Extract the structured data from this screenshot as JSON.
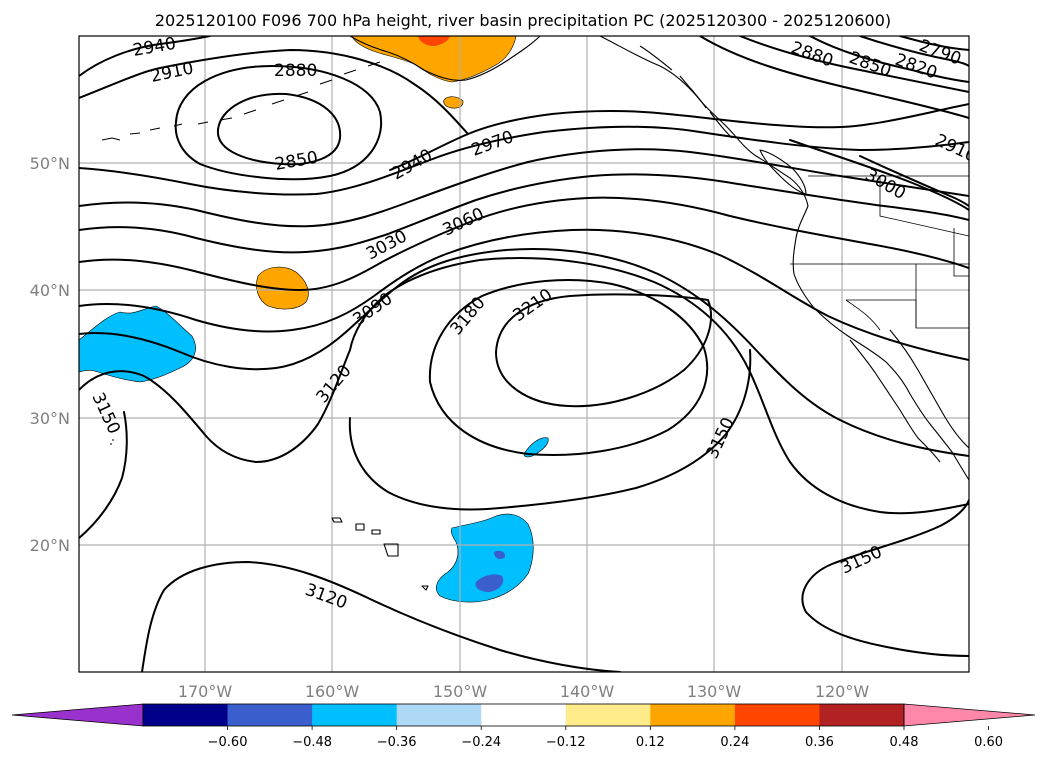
{
  "title": "2025120100 F096 700 hPa height, river basin precipitation PC (2025120300 - 2025120600)",
  "lat_labels": [
    "50°N",
    "40°N",
    "30°N",
    "20°N"
  ],
  "lon_labels": [
    "170°W",
    "160°W",
    "150°W",
    "140°W",
    "130°W",
    "120°W"
  ],
  "contour_labels": [
    {
      "text": "2940",
      "name": "label-2940-nw"
    },
    {
      "text": "2910",
      "name": "label-2910-nw"
    },
    {
      "text": "2880",
      "name": "label-2880-low"
    },
    {
      "text": "2850",
      "name": "label-2850-low"
    },
    {
      "text": "2940",
      "name": "label-2940-mid"
    },
    {
      "text": "2970",
      "name": "label-2970"
    },
    {
      "text": "3060",
      "name": "label-3060"
    },
    {
      "text": "3030",
      "name": "label-3030"
    },
    {
      "text": "3090",
      "name": "label-3090"
    },
    {
      "text": "3180",
      "name": "label-3180"
    },
    {
      "text": "3210",
      "name": "label-3210"
    },
    {
      "text": "3120",
      "name": "label-3120-mid"
    },
    {
      "text": "3150",
      "name": "label-3150-west"
    },
    {
      "text": "3150",
      "name": "label-3150-east"
    },
    {
      "text": "3120",
      "name": "label-3120-south"
    },
    {
      "text": "3150",
      "name": "label-3150-se"
    },
    {
      "text": "2880",
      "name": "label-2880-ne"
    },
    {
      "text": "2850",
      "name": "label-2850-ne"
    },
    {
      "text": "2820",
      "name": "label-2820-ne"
    },
    {
      "text": "2790",
      "name": "label-2790-ne"
    },
    {
      "text": "2910",
      "name": "label-2910-ne"
    },
    {
      "text": "3000",
      "name": "label-3000-ne"
    }
  ],
  "colorbar": {
    "ticks": [
      "−0.60",
      "−0.48",
      "−0.36",
      "−0.24",
      "−0.12",
      "0.12",
      "0.24",
      "0.36",
      "0.48",
      "0.60"
    ],
    "colors": [
      "#9932cc",
      "#00008b",
      "#3a5fcd",
      "#00bfff",
      "#add8f6",
      "#ffffff",
      "#ffeb8a",
      "#ffa500",
      "#ff4500",
      "#b22222",
      "#ff88aa"
    ]
  },
  "shading_colors": {
    "orange": "#ffa500",
    "red": "#ff4500",
    "light_blue": "#00bfff",
    "royal_blue": "#3a5fcd"
  }
}
